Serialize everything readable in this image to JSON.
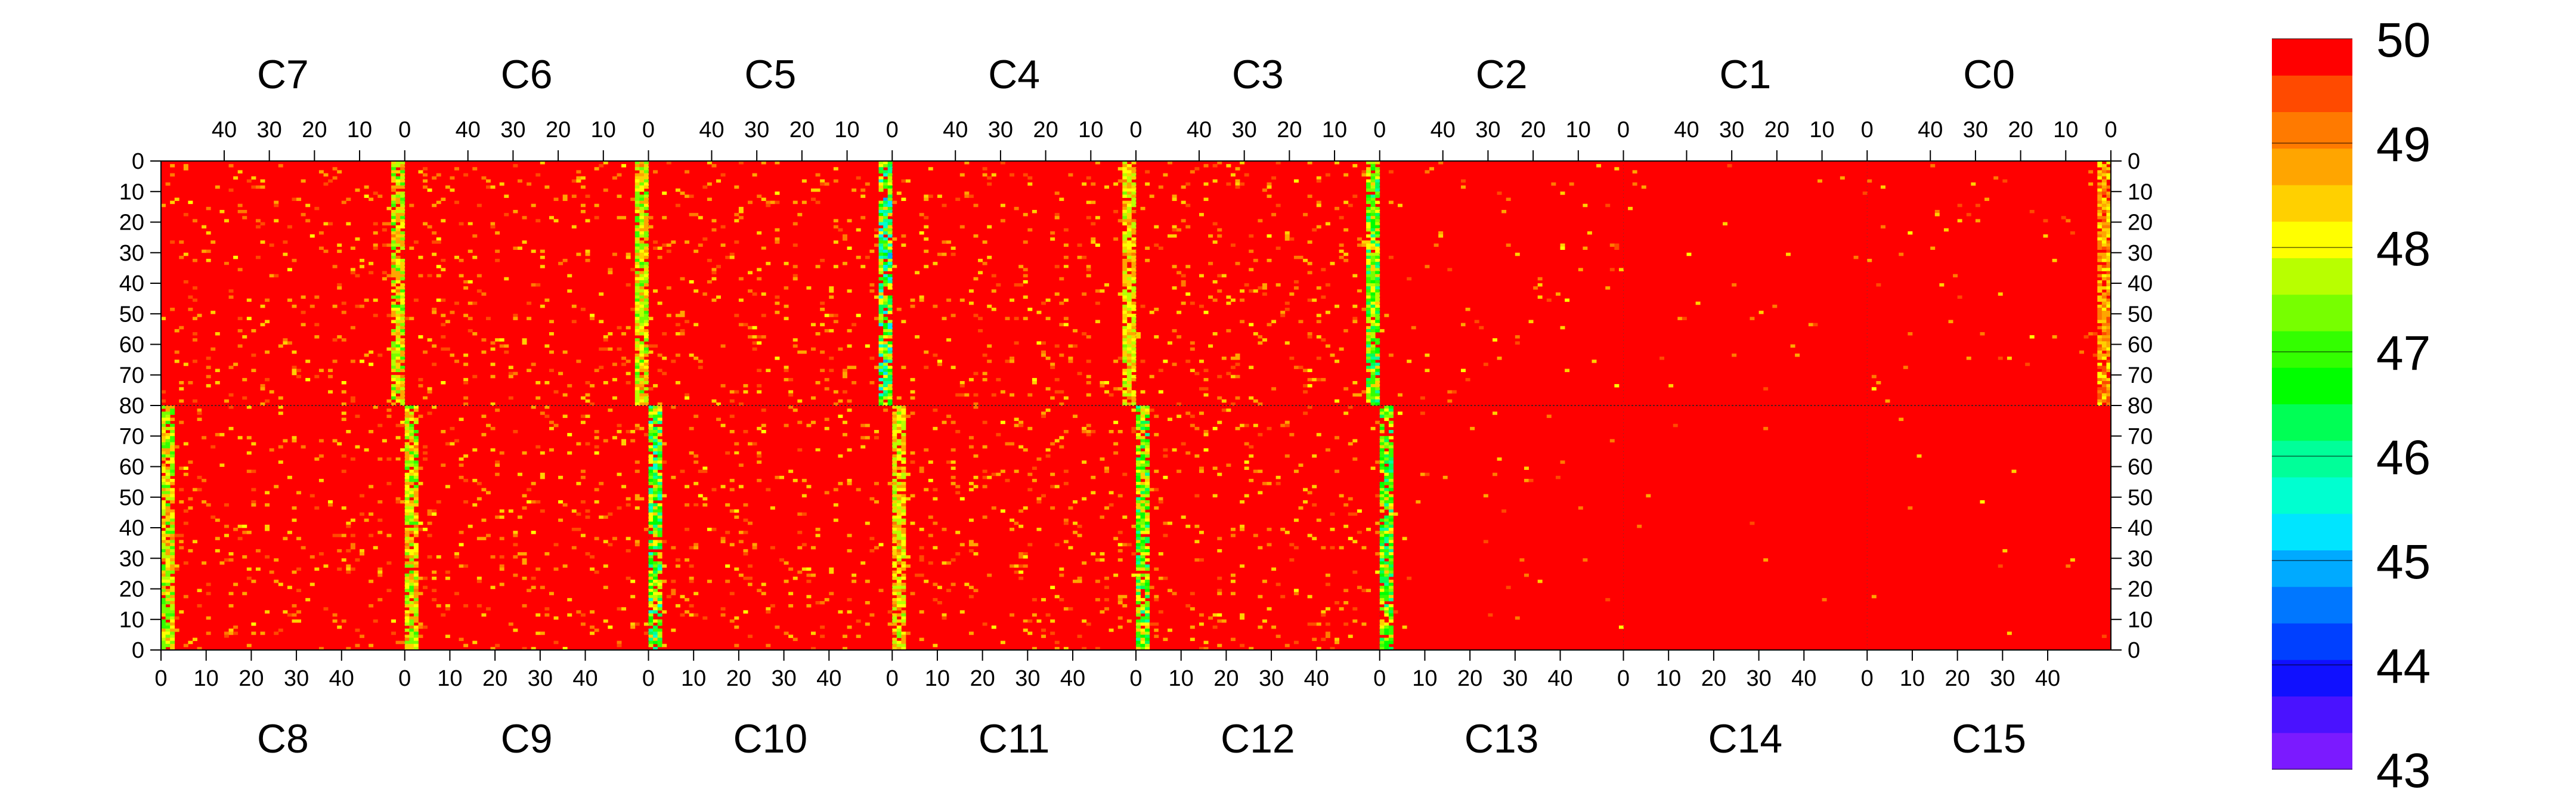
{
  "chart_data": {
    "type": "heatmap",
    "title": "",
    "top_panels": [
      "C7",
      "C6",
      "C5",
      "C4",
      "C3",
      "C2",
      "C1",
      "C0"
    ],
    "bottom_panels": [
      "C8",
      "C9",
      "C10",
      "C11",
      "C12",
      "C13",
      "C14",
      "C15"
    ],
    "panel_columns": 54,
    "rows_per_half": 80,
    "top_x_ticks": [
      "40",
      "30",
      "20",
      "10",
      "0"
    ],
    "bottom_x_ticks": [
      "0",
      "10",
      "20",
      "30",
      "40"
    ],
    "top_x_tick_values": [
      40,
      30,
      20,
      10,
      0
    ],
    "bottom_x_tick_values": [
      0,
      10,
      20,
      30,
      40
    ],
    "y_ticks": [
      "0",
      "10",
      "20",
      "30",
      "40",
      "50",
      "60",
      "70",
      "80",
      "70",
      "60",
      "50",
      "40",
      "30",
      "20",
      "10",
      "0"
    ],
    "zlim": [
      43,
      50
    ],
    "colorbar_labels": [
      "50",
      "49",
      "48",
      "47",
      "46",
      "45",
      "44",
      "43"
    ],
    "colorbar_label_values": [
      50,
      49,
      48,
      47,
      46,
      45,
      44,
      43
    ],
    "palette": [
      "#7b1aff",
      "#4a12ff",
      "#1010ff",
      "#0040ff",
      "#0077ff",
      "#00aaff",
      "#00e5ff",
      "#00ffd0",
      "#00ff99",
      "#00ff55",
      "#00ff00",
      "#33ff00",
      "#77ff00",
      "#b8ff00",
      "#ffff00",
      "#ffd000",
      "#ffa500",
      "#ff7a00",
      "#ff4a00",
      "#ff0000"
    ],
    "background_value": 50,
    "noisy_column_bands": [
      {
        "panel": "C7",
        "column": 52,
        "value_range": [
          47,
          49
        ]
      },
      {
        "panel": "C6",
        "column": 52,
        "value_range": [
          47,
          49
        ]
      },
      {
        "panel": "C5",
        "column": 52,
        "value_range": [
          45,
          48.5
        ]
      },
      {
        "panel": "C4",
        "column": 52,
        "value_range": [
          47.5,
          49
        ]
      },
      {
        "panel": "C3",
        "column": 52,
        "value_range": [
          46,
          48.5
        ]
      },
      {
        "panel": "C0",
        "column": 52,
        "value_range": [
          48,
          49.5
        ]
      },
      {
        "panel": "C8",
        "column": 1,
        "value_range": [
          47,
          49
        ]
      },
      {
        "panel": "C9",
        "column": 1,
        "value_range": [
          47,
          49
        ]
      },
      {
        "panel": "C10",
        "column": 1,
        "value_range": [
          45.5,
          48.5
        ]
      },
      {
        "panel": "C11",
        "column": 1,
        "value_range": [
          47.5,
          49
        ]
      },
      {
        "panel": "C12",
        "column": 1,
        "value_range": [
          46,
          48.5
        ]
      },
      {
        "panel": "C13",
        "column": 1,
        "value_range": [
          46,
          48.5
        ]
      }
    ],
    "grid": false
  }
}
